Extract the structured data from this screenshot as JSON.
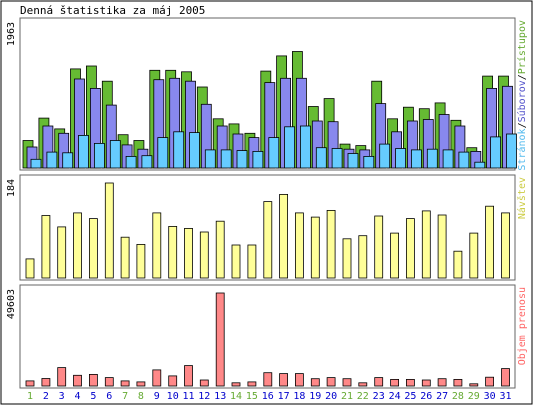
{
  "title": "Denná štatistika za máj 2005",
  "colors": {
    "hits": "#66bb33",
    "files": "#8888ee",
    "pages": "#66ccff",
    "visits": "#ffff99",
    "kbytes": "#ff8888",
    "weekend_label": "#66aa33",
    "weekday_label": "#0000cc",
    "legend_hits": "#66aa33",
    "legend_files": "#5555cc",
    "legend_pages": "#55bbee",
    "legend_visits": "#cccc44",
    "legend_kbytes": "#ff6666",
    "frame": "#000000",
    "panel_border": "#666666"
  },
  "chart_data": [
    {
      "type": "bar",
      "panel": "hits",
      "title": "Denná štatistika za máj 2005",
      "ymax_label": "1963",
      "ylim": [
        0,
        1963
      ],
      "categories": [
        "1",
        "2",
        "3",
        "4",
        "5",
        "6",
        "7",
        "8",
        "9",
        "10",
        "11",
        "12",
        "13",
        "14",
        "15",
        "16",
        "17",
        "18",
        "19",
        "20",
        "21",
        "22",
        "23",
        "24",
        "25",
        "26",
        "27",
        "28",
        "29",
        "30",
        "31"
      ],
      "weekend_days": [
        "1",
        "7",
        "8",
        "14",
        "15",
        "21",
        "22",
        "28",
        "29"
      ],
      "legend": [
        "Prístupov",
        "Súborov",
        "Stránok"
      ],
      "legend_separator": "/",
      "series": [
        {
          "name": "Prístupov",
          "values": [
            380,
            690,
            540,
            1370,
            1410,
            1200,
            460,
            380,
            1350,
            1350,
            1330,
            1120,
            680,
            610,
            480,
            1340,
            1550,
            1610,
            850,
            960,
            330,
            310,
            1200,
            680,
            840,
            820,
            900,
            660,
            280,
            1270,
            1270
          ]
        },
        {
          "name": "Súborov",
          "values": [
            290,
            580,
            480,
            1230,
            1100,
            870,
            320,
            260,
            1220,
            1240,
            1200,
            880,
            580,
            470,
            420,
            1180,
            1240,
            1240,
            650,
            640,
            260,
            250,
            890,
            500,
            650,
            670,
            740,
            580,
            230,
            1100,
            1130
          ]
        },
        {
          "name": "Stránok",
          "values": [
            120,
            220,
            210,
            450,
            340,
            380,
            160,
            170,
            420,
            500,
            490,
            250,
            250,
            240,
            230,
            420,
            570,
            580,
            280,
            270,
            200,
            160,
            330,
            270,
            250,
            260,
            250,
            220,
            80,
            430,
            470
          ]
        }
      ]
    },
    {
      "type": "bar",
      "panel": "visits",
      "ymax_label": "184",
      "ylim": [
        0,
        184
      ],
      "categories": [
        "1",
        "2",
        "3",
        "4",
        "5",
        "6",
        "7",
        "8",
        "9",
        "10",
        "11",
        "12",
        "13",
        "14",
        "15",
        "16",
        "17",
        "18",
        "19",
        "20",
        "21",
        "22",
        "23",
        "24",
        "25",
        "26",
        "27",
        "28",
        "29",
        "30",
        "31"
      ],
      "legend": [
        "Návštev"
      ],
      "series": [
        {
          "name": "Návštev",
          "values": [
            37,
            121,
            99,
            126,
            115,
            184,
            79,
            65,
            126,
            100,
            96,
            89,
            110,
            64,
            64,
            148,
            162,
            126,
            118,
            131,
            76,
            82,
            120,
            87,
            115,
            130,
            122,
            52,
            87,
            139,
            126
          ]
        }
      ]
    },
    {
      "type": "bar",
      "panel": "kbytes",
      "ymax_label": "49603",
      "ylim": [
        0,
        49603
      ],
      "categories": [
        "1",
        "2",
        "3",
        "4",
        "5",
        "6",
        "7",
        "8",
        "9",
        "10",
        "11",
        "12",
        "13",
        "14",
        "15",
        "16",
        "17",
        "18",
        "19",
        "20",
        "21",
        "22",
        "23",
        "24",
        "25",
        "26",
        "27",
        "28",
        "29",
        "30",
        "31"
      ],
      "legend": [
        "Objem prenosu"
      ],
      "series": [
        {
          "name": "Objem prenosu",
          "values": [
            2700,
            4000,
            9800,
            5700,
            6200,
            4500,
            2700,
            2200,
            8600,
            5400,
            10900,
            3200,
            49603,
            1700,
            2200,
            7100,
            6600,
            6600,
            3900,
            4500,
            3900,
            1700,
            4500,
            3500,
            3500,
            3200,
            3900,
            3500,
            1200,
            4700,
            9300
          ]
        }
      ]
    }
  ]
}
